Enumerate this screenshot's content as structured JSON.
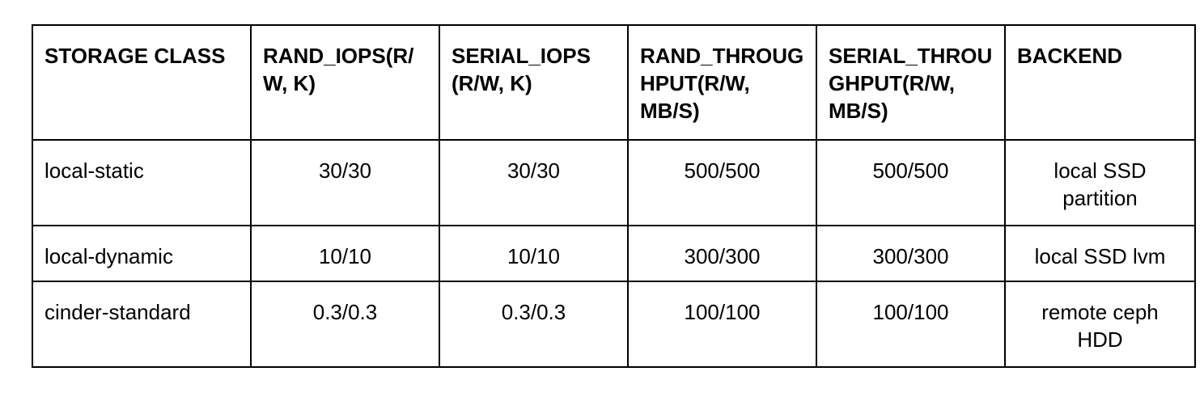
{
  "table": {
    "headers": [
      "STORAGE CLASS",
      "RAND_IOPS(R/W, K)",
      "SERIAL_IOPS (R/W, K)",
      "RAND_THROUGHPUT(R/W, MB/S)",
      "SERIAL_THROUGHPUT(R/W, MB/S)",
      "BACKEND"
    ],
    "rows": [
      [
        "local-static",
        "30/30",
        "30/30",
        "500/500",
        "500/500",
        "local SSD partition"
      ],
      [
        "local-dynamic",
        "10/10",
        "10/10",
        "300/300",
        "300/300",
        "local SSD lvm"
      ],
      [
        "cinder-standard",
        "0.3/0.3",
        "0.3/0.3",
        "100/100",
        "100/100",
        "remote ceph HDD"
      ]
    ]
  }
}
